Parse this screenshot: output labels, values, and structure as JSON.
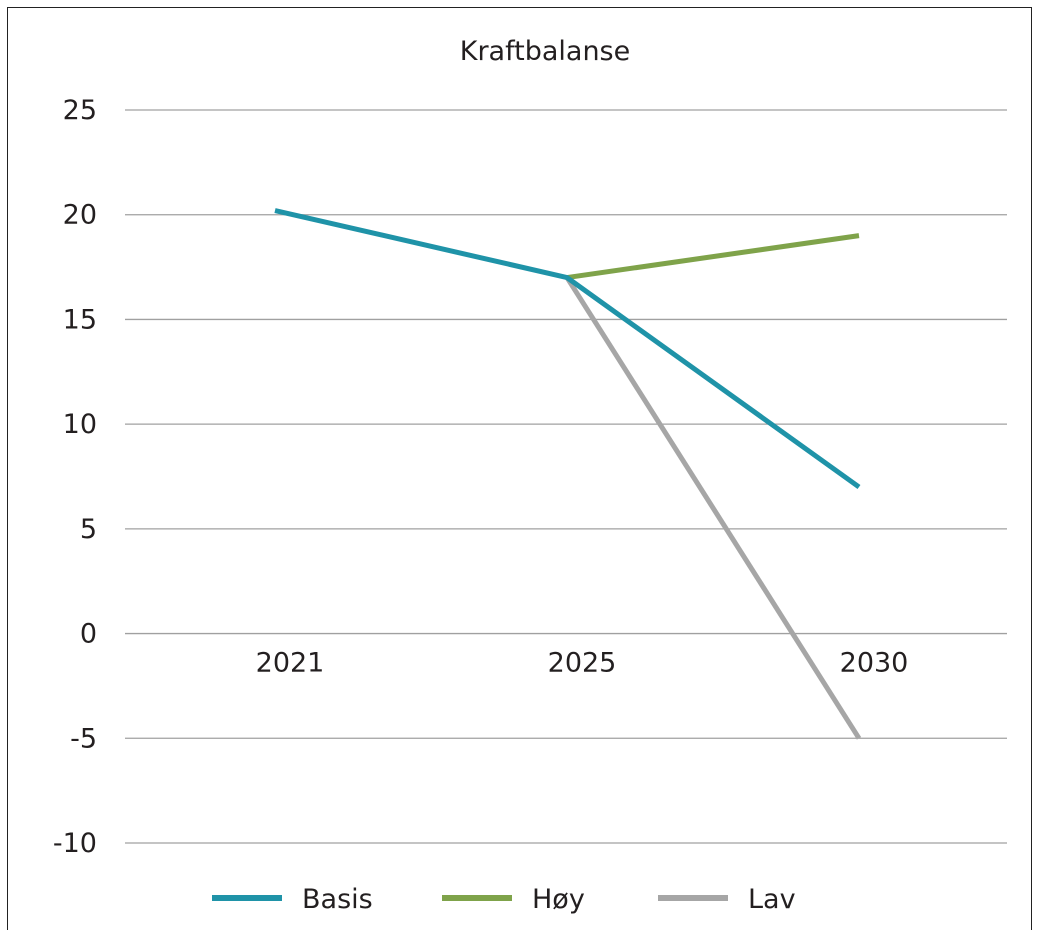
{
  "chart_data": {
    "type": "line",
    "title": "Kraftbalanse",
    "xlabel": "",
    "ylabel": "",
    "categories": [
      "2021",
      "2025",
      "2030"
    ],
    "ylim": [
      -10,
      25
    ],
    "yticks": [
      25,
      20,
      15,
      10,
      5,
      0,
      -5,
      -10
    ],
    "ytick_labels": [
      "25",
      "20",
      "15",
      "10",
      "5",
      "0",
      "-5",
      "-10"
    ],
    "grid": "horizontal",
    "legend_position": "bottom",
    "series": [
      {
        "name": "Basis",
        "color": "#1f93a8",
        "values": [
          20.2,
          17.0,
          7.0
        ]
      },
      {
        "name": "Høy",
        "color": "#7fa34a",
        "values": [
          null,
          17.0,
          19.0
        ]
      },
      {
        "name": "Lav",
        "color": "#a6a6a6",
        "values": [
          null,
          17.0,
          -5.0
        ]
      }
    ]
  }
}
